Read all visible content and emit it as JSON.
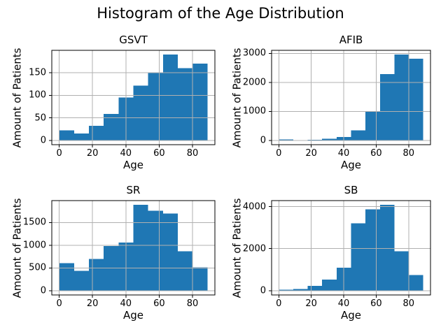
{
  "figure": {
    "suptitle": "Histogram of the Age Distribution",
    "bar_color": "#1f77b4",
    "grid_color": "#b0b0b0",
    "spine_color": "#000000",
    "background": "#ffffff"
  },
  "chart_data": [
    {
      "type": "histogram",
      "title": "GSVT",
      "xlabel": "Age",
      "ylabel": "Amount of Patients",
      "bin_edges": [
        0,
        8.9,
        17.8,
        26.7,
        35.6,
        44.5,
        53.4,
        62.3,
        71.2,
        80.1,
        89
      ],
      "values": [
        22,
        15,
        32,
        59,
        95,
        121,
        150,
        190,
        160,
        170
      ],
      "xticks": [
        0,
        20,
        40,
        60,
        80
      ],
      "yticks": [
        0,
        50,
        100,
        150
      ],
      "xlim": [
        -4.45,
        93.45
      ],
      "ylim": [
        -9.5,
        199.5
      ],
      "grid": true
    },
    {
      "type": "histogram",
      "title": "AFIB",
      "xlabel": "Age",
      "ylabel": "Amount of Patients",
      "bin_edges": [
        0,
        8.9,
        17.8,
        26.7,
        35.6,
        44.5,
        53.4,
        62.3,
        71.2,
        80.1,
        89
      ],
      "values": [
        30,
        10,
        25,
        55,
        120,
        350,
        1010,
        2290,
        2960,
        2820
      ],
      "xticks": [
        0,
        20,
        40,
        60,
        80
      ],
      "yticks": [
        0,
        1000,
        2000,
        3000
      ],
      "xlim": [
        -4.45,
        93.45
      ],
      "ylim": [
        -148,
        3108
      ],
      "grid": true
    },
    {
      "type": "histogram",
      "title": "SR",
      "xlabel": "Age",
      "ylabel": "Amount of Patients",
      "bin_edges": [
        0,
        8.9,
        17.8,
        26.7,
        35.6,
        44.5,
        53.4,
        62.3,
        71.2,
        80.1,
        89
      ],
      "values": [
        610,
        440,
        700,
        980,
        1060,
        1890,
        1760,
        1700,
        870,
        510
      ],
      "xticks": [
        0,
        20,
        40,
        60,
        80
      ],
      "yticks": [
        0,
        500,
        1000,
        1500
      ],
      "xlim": [
        -4.45,
        93.45
      ],
      "ylim": [
        -94.5,
        1984.5
      ],
      "grid": true
    },
    {
      "type": "histogram",
      "title": "SB",
      "xlabel": "Age",
      "ylabel": "Amount of Patients",
      "bin_edges": [
        0,
        8.9,
        17.8,
        26.7,
        35.6,
        44.5,
        53.4,
        62.3,
        71.2,
        80.1,
        89
      ],
      "values": [
        50,
        85,
        230,
        520,
        1100,
        3200,
        3870,
        4090,
        1880,
        750
      ],
      "xticks": [
        0,
        20,
        40,
        60,
        80
      ],
      "yticks": [
        0,
        2000,
        4000
      ],
      "xlim": [
        -4.45,
        93.45
      ],
      "ylim": [
        -204,
        4284
      ],
      "grid": true
    }
  ]
}
